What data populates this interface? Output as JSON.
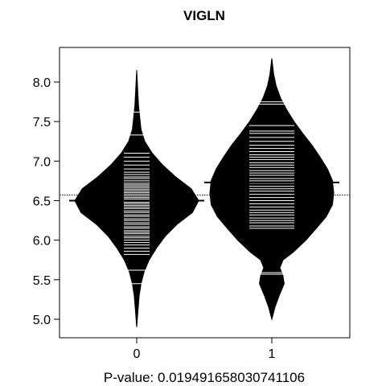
{
  "chart_data": {
    "type": "beanplot",
    "title": "VIGLN",
    "xlabel": "P-value: 0.019491658030741106",
    "ylabel": "",
    "categories": [
      "0",
      "1"
    ],
    "ylim": [
      4.75,
      8.45
    ],
    "yticks": [
      5.0,
      5.5,
      6.0,
      6.5,
      7.0,
      7.5,
      8.0
    ],
    "ytick_labels": [
      "5.0",
      "5.5",
      "6.0",
      "6.5",
      "7.0",
      "7.5",
      "8.0"
    ],
    "overall_mean": 6.57,
    "group_means": [
      6.5,
      6.73
    ],
    "density": [
      {
        "y": [
          4.9,
          5.1,
          5.3,
          5.45,
          5.6,
          5.75,
          5.9,
          6.05,
          6.2,
          6.35,
          6.5,
          6.65,
          6.8,
          6.95,
          7.1,
          7.25,
          7.4,
          7.55,
          7.7,
          7.85,
          8.0,
          8.15
        ],
        "width": [
          0.0,
          0.02,
          0.04,
          0.07,
          0.12,
          0.2,
          0.32,
          0.46,
          0.65,
          0.9,
          1.0,
          0.88,
          0.63,
          0.42,
          0.25,
          0.13,
          0.07,
          0.05,
          0.03,
          0.02,
          0.01,
          0.0
        ]
      },
      {
        "y": [
          5.0,
          5.15,
          5.3,
          5.45,
          5.55,
          5.65,
          5.75,
          5.85,
          6.0,
          6.15,
          6.3,
          6.45,
          6.6,
          6.75,
          6.9,
          7.05,
          7.2,
          7.35,
          7.5,
          7.65,
          7.8,
          7.95,
          8.1,
          8.3
        ],
        "width": [
          0.0,
          0.05,
          0.12,
          0.2,
          0.18,
          0.13,
          0.18,
          0.35,
          0.55,
          0.72,
          0.88,
          0.98,
          1.0,
          0.98,
          0.9,
          0.78,
          0.65,
          0.5,
          0.36,
          0.24,
          0.14,
          0.07,
          0.03,
          0.0
        ]
      }
    ],
    "observations": [
      [
        5.45,
        5.62,
        5.82,
        5.86,
        5.9,
        5.94,
        5.97,
        6.0,
        6.03,
        6.05,
        6.08,
        6.1,
        6.12,
        6.15,
        6.17,
        6.2,
        6.22,
        6.25,
        6.27,
        6.3,
        6.32,
        6.35,
        6.37,
        6.4,
        6.42,
        6.44,
        6.46,
        6.48,
        6.5,
        6.52,
        6.54,
        6.56,
        6.58,
        6.6,
        6.62,
        6.64,
        6.66,
        6.68,
        6.7,
        6.72,
        6.75,
        6.78,
        6.8,
        6.83,
        6.86,
        6.9,
        6.95,
        7.0,
        7.05,
        7.1,
        7.33,
        7.62
      ],
      [
        5.57,
        5.59,
        6.15,
        6.18,
        6.22,
        6.25,
        6.28,
        6.32,
        6.35,
        6.38,
        6.42,
        6.46,
        6.5,
        6.54,
        6.58,
        6.62,
        6.65,
        6.68,
        6.72,
        6.75,
        6.78,
        6.82,
        6.85,
        6.88,
        6.92,
        6.95,
        6.98,
        7.02,
        7.05,
        7.08,
        7.12,
        7.16,
        7.2,
        7.25,
        7.3,
        7.35,
        7.38,
        7.45,
        7.72,
        7.75
      ]
    ]
  }
}
